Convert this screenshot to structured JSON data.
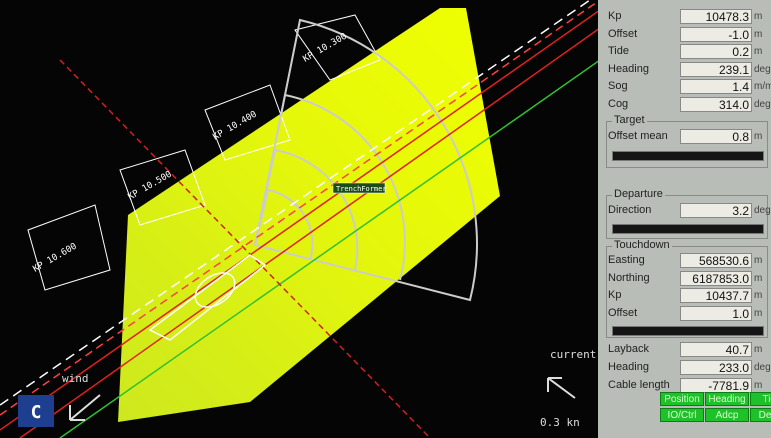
{
  "map": {
    "kp_labels": [
      "KP 10.300",
      "KP 10.400",
      "KP 10.500",
      "KP 10.600"
    ],
    "tag": "TrenchFormer",
    "current_label": "current",
    "current_speed": "0.3 kn",
    "wind_label": "wind",
    "badge": "C"
  },
  "status": {
    "rows": [
      {
        "label": "Kp",
        "value": "10478.3",
        "unit": "m"
      },
      {
        "label": "Offset",
        "value": "-1.0",
        "unit": "m"
      },
      {
        "label": "Tide",
        "value": "0.2",
        "unit": "m"
      },
      {
        "label": "Heading",
        "value": "239.1",
        "unit": "deg"
      },
      {
        "label": "Sog",
        "value": "1.4",
        "unit": "m/min"
      },
      {
        "label": "Cog",
        "value": "314.0",
        "unit": "deg"
      }
    ]
  },
  "target": {
    "title": "Target",
    "rows": [
      {
        "label": "Offset mean",
        "value": "0.8",
        "unit": "m"
      }
    ]
  },
  "departure": {
    "title": "Departure",
    "rows": [
      {
        "label": "Direction",
        "value": "3.2",
        "unit": "deg"
      }
    ]
  },
  "touchdown": {
    "title": "Touchdown",
    "rows": [
      {
        "label": "Easting",
        "value": "568530.6",
        "unit": "m"
      },
      {
        "label": "Northing",
        "value": "6187853.0",
        "unit": "m"
      },
      {
        "label": "Kp",
        "value": "10437.7",
        "unit": "m"
      },
      {
        "label": "Offset",
        "value": "1.0",
        "unit": "m"
      }
    ]
  },
  "layback": {
    "rows": [
      {
        "label": "Layback",
        "value": "40.7",
        "unit": "m"
      },
      {
        "label": "Heading",
        "value": "233.0",
        "unit": "deg"
      },
      {
        "label": "Cable length",
        "value": "-7781.9",
        "unit": "m"
      }
    ]
  },
  "buttons": [
    "Position",
    "Heading",
    "Tide",
    "IO/Ctrl",
    "Adcp",
    "Demo"
  ]
}
